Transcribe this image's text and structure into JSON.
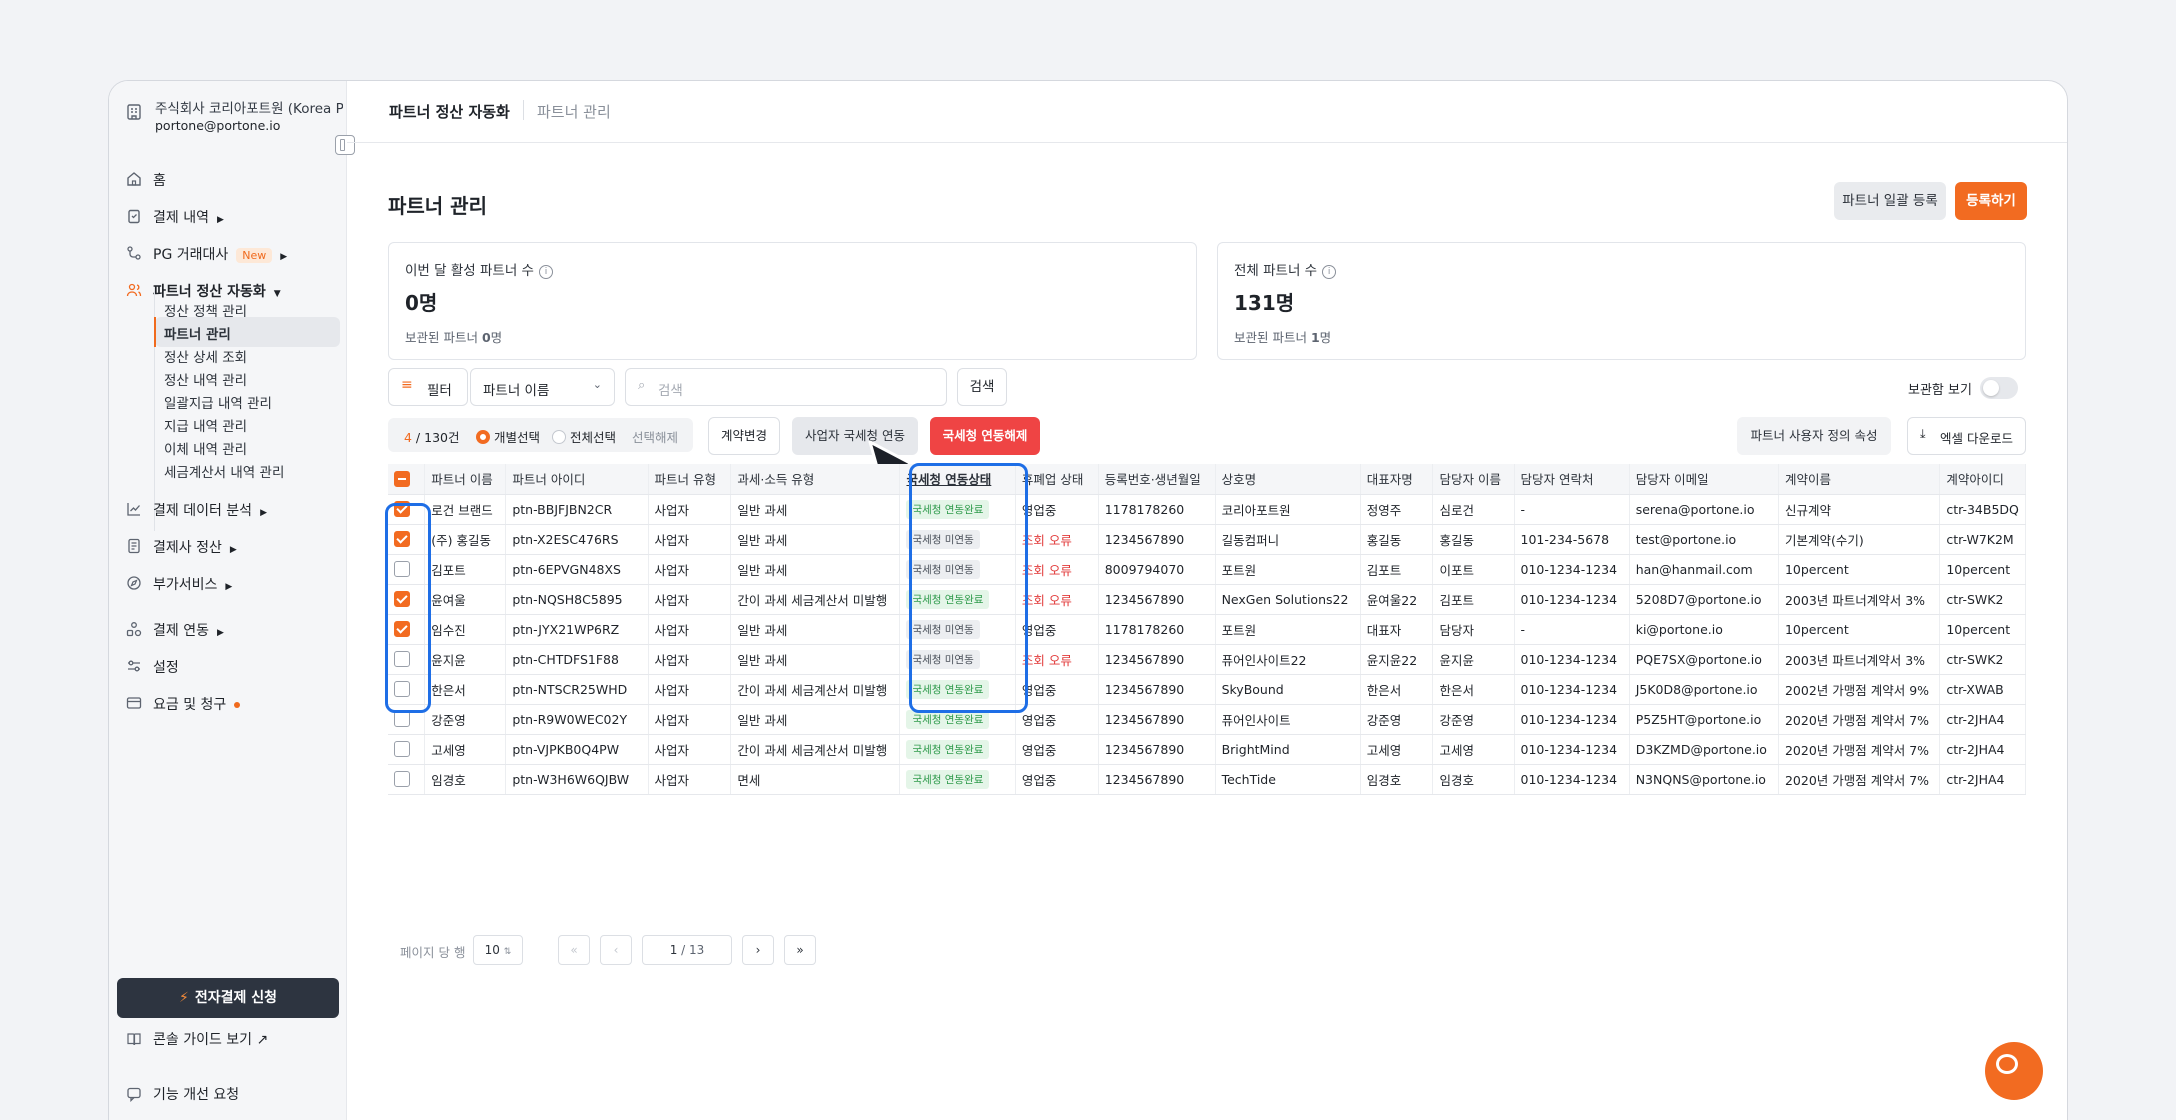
{
  "sidebar": {
    "company_name": "주식회사 코리아포트원 (Korea PortOne)",
    "company_email": "portone@portone.io",
    "nav": {
      "home": "홈",
      "payments": "결제 내역",
      "pg": "PG 거래대사",
      "pg_badge": "New",
      "partner": "파트너 정산 자동화",
      "data": "결제 데이터 분석",
      "settlement": "결제사 정산",
      "addon": "부가서비스",
      "integration": "결제 연동",
      "settings": "설정",
      "billing": "요금 및 청구"
    },
    "subnav": [
      "정산 정책 관리",
      "파트너 관리",
      "정산 상세 조회",
      "정산 내역 관리",
      "일괄지급 내역 관리",
      "지급 내역 관리",
      "이체 내역 관리",
      "세금계산서 내역 관리"
    ],
    "apply_button": "전자결제 신청",
    "console_guide": "콘솔 가이드 보기 ↗",
    "feedback": "기능 개선 요청"
  },
  "header": {
    "breadcrumb_main": "파트너 정산 자동화",
    "breadcrumb_sub": "파트너 관리"
  },
  "page": {
    "title": "파트너 관리",
    "bulk_register": "파트너 일괄 등록",
    "register": "등록하기"
  },
  "stats": {
    "active_label": "이번 달 활성 파트너 수",
    "active_value": "0명",
    "active_sub_prefix": "보관된 파트너 ",
    "active_sub_count": "0",
    "active_sub_suffix": "명",
    "total_label": "전체 파트너 수",
    "total_value": "131명",
    "total_sub_prefix": "보관된 파트너 ",
    "total_sub_count": "1",
    "total_sub_suffix": "명"
  },
  "filters": {
    "filter_label": "필터",
    "select_value": "파트너 이름",
    "search_placeholder": "검색",
    "search_button": "검색",
    "archive_toggle": "보관함 보기"
  },
  "selection": {
    "selected": "4",
    "total": " / 130건",
    "individual": "개별선택",
    "all": "전체선택",
    "clear": "선택해제",
    "change_contract": "계약변경",
    "link_nts": "사업자 국세청 연동",
    "unlink_nts": "국세청 연동해제",
    "custom_props": "파트너 사용자 정의 속성",
    "excel_download": "엑셀 다운로드"
  },
  "table": {
    "headers": [
      "파트너 이름",
      "파트너 아이디",
      "파트너 유형",
      "과세·소득 유형",
      "국세청 연동상태",
      "휴폐업 상태",
      "등록번호·생년월일",
      "상호명",
      "대표자명",
      "담당자 이름",
      "담당자 연락처",
      "담당자 이메일",
      "계약이름",
      "계약아이디"
    ],
    "rows": [
      {
        "checked": true,
        "name": "로건 브랜드",
        "id": "ptn-BBJFJBN2CR",
        "type": "사업자",
        "tax": "일반 과세",
        "nts": "국세청 연동완료",
        "nts_done": true,
        "biz": "영업중",
        "biz_err": false,
        "reg": "1178178260",
        "company": "코리아포트원",
        "ceo": "정영주",
        "manager": "심로건",
        "phone": "-",
        "email": "serena@portone.io",
        "contract": "신규계약",
        "contract_id": "ctr-34B5DQ"
      },
      {
        "checked": true,
        "name": "(주) 홍길동",
        "id": "ptn-X2ESC476RS",
        "type": "사업자",
        "tax": "일반 과세",
        "nts": "국세청 미연동",
        "nts_done": false,
        "biz": "조회 오류",
        "biz_err": true,
        "reg": "1234567890",
        "company": "길동컴퍼니",
        "ceo": "홍길동",
        "manager": "홍길동",
        "phone": "101-234-5678",
        "email": "test@portone.io",
        "contract": "기본계약(수기)",
        "contract_id": "ctr-W7K2M"
      },
      {
        "checked": false,
        "name": "김포트",
        "id": "ptn-6EPVGN48XS",
        "type": "사업자",
        "tax": "일반 과세",
        "nts": "국세청 미연동",
        "nts_done": false,
        "biz": "조회 오류",
        "biz_err": true,
        "reg": "8009794070",
        "company": "포트원",
        "ceo": "김포트",
        "manager": "이포트",
        "phone": "010-1234-1234",
        "email": "han@hanmail.com",
        "contract": "10percent",
        "contract_id": "10percent"
      },
      {
        "checked": true,
        "name": "윤여울",
        "id": "ptn-NQSH8C5895",
        "type": "사업자",
        "tax": "간이 과세 세금계산서 미발행",
        "nts": "국세청 연동완료",
        "nts_done": true,
        "biz": "조회 오류",
        "biz_err": true,
        "reg": "1234567890",
        "company": "NexGen Solutions22",
        "ceo": "윤여울22",
        "manager": "김포트",
        "phone": "010-1234-1234",
        "email": "5208D7@portone.io",
        "contract": "2003년 파트너계약서 3%",
        "contract_id": "ctr-SWK2"
      },
      {
        "checked": true,
        "name": "임수진",
        "id": "ptn-JYX21WP6RZ",
        "type": "사업자",
        "tax": "일반 과세",
        "nts": "국세청 미연동",
        "nts_done": false,
        "biz": "영업중",
        "biz_err": false,
        "reg": "1178178260",
        "company": "포트원",
        "ceo": "대표자",
        "manager": "담당자",
        "phone": "-",
        "email": "ki@portone.io",
        "contract": "10percent",
        "contract_id": "10percent"
      },
      {
        "checked": false,
        "name": "윤지윤",
        "id": "ptn-CHTDFS1F88",
        "type": "사업자",
        "tax": "일반 과세",
        "nts": "국세청 미연동",
        "nts_done": false,
        "biz": "조회 오류",
        "biz_err": true,
        "reg": "1234567890",
        "company": "퓨어인사이트22",
        "ceo": "윤지윤22",
        "manager": "윤지윤",
        "phone": "010-1234-1234",
        "email": "PQE7SX@portone.io",
        "contract": "2003년 파트너계약서 3%",
        "contract_id": "ctr-SWK2"
      },
      {
        "checked": false,
        "name": "한은서",
        "id": "ptn-NTSCR25WHD",
        "type": "사업자",
        "tax": "간이 과세 세금계산서 미발행",
        "nts": "국세청 연동완료",
        "nts_done": true,
        "biz": "영업중",
        "biz_err": false,
        "reg": "1234567890",
        "company": "SkyBound",
        "ceo": "한은서",
        "manager": "한은서",
        "phone": "010-1234-1234",
        "email": "J5K0D8@portone.io",
        "contract": "2002년 가맹점 계약서 9%",
        "contract_id": "ctr-XWAB"
      },
      {
        "checked": false,
        "name": "강준영",
        "id": "ptn-R9W0WEC02Y",
        "type": "사업자",
        "tax": "일반 과세",
        "nts": "국세청 연동완료",
        "nts_done": true,
        "biz": "영업중",
        "biz_err": false,
        "reg": "1234567890",
        "company": "퓨어인사이트",
        "ceo": "강준영",
        "manager": "강준영",
        "phone": "010-1234-1234",
        "email": "P5Z5HT@portone.io",
        "contract": "2020년 가맹점 계약서 7%",
        "contract_id": "ctr-2JHA4"
      },
      {
        "checked": false,
        "name": "고세영",
        "id": "ptn-VJPKB0Q4PW",
        "type": "사업자",
        "tax": "간이 과세 세금계산서 미발행",
        "nts": "국세청 연동완료",
        "nts_done": true,
        "biz": "영업중",
        "biz_err": false,
        "reg": "1234567890",
        "company": "BrightMind",
        "ceo": "고세영",
        "manager": "고세영",
        "phone": "010-1234-1234",
        "email": "D3KZMD@portone.io",
        "contract": "2020년 가맹점 계약서 7%",
        "contract_id": "ctr-2JHA4"
      },
      {
        "checked": false,
        "name": "임경호",
        "id": "ptn-W3H6W6QJBW",
        "type": "사업자",
        "tax": "면세",
        "nts": "국세청 연동완료",
        "nts_done": true,
        "biz": "영업중",
        "biz_err": false,
        "reg": "1234567890",
        "company": "TechTide",
        "ceo": "임경호",
        "manager": "임경호",
        "phone": "010-1234-1234",
        "email": "N3NQNS@portone.io",
        "contract": "2020년 가맹점 계약서 7%",
        "contract_id": "ctr-2JHA4"
      }
    ]
  },
  "pagination": {
    "per_page_label": "페이지 당 행",
    "per_page": "10",
    "current": "1",
    "total": "/  13"
  },
  "colors": {
    "accent": "#f26b21",
    "danger": "#ef4444",
    "highlight": "#1e6ee6",
    "success": "#2e9a4b"
  }
}
